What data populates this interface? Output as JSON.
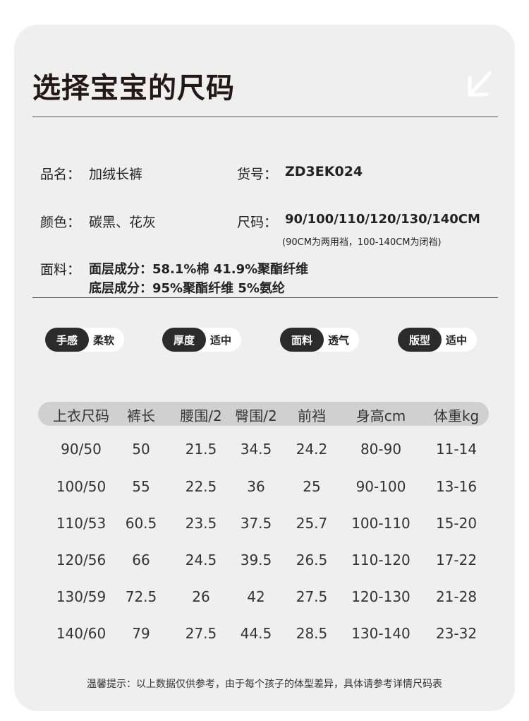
{
  "title": "选择宝宝的尺码",
  "info": {
    "name_label": "品名：",
    "name": "加绒长裤",
    "sku_label": "货号：",
    "sku": "ZD3EK024",
    "color_label": "颜色：",
    "color": "碳黑、花灰",
    "size_label": "尺码：",
    "sizes": "90/100/110/120/130/140CM",
    "size_note": "(90CM为两用裆，100-140CM为闭裆)",
    "fabric_label": "面料：",
    "fabric_outer": "面层成分：58.1%棉 41.9%聚酯纤维",
    "fabric_inner": "底层成分：95%聚酯纤维 5%氨纶"
  },
  "features": [
    {
      "key": "手感",
      "value": "柔软"
    },
    {
      "key": "厚度",
      "value": "适中"
    },
    {
      "key": "面料",
      "value": "透气"
    },
    {
      "key": "版型",
      "value": "适中"
    }
  ],
  "table": {
    "headers": [
      "上衣尺码",
      "裤长",
      "腰围/2",
      "臀围/2",
      "前裆",
      "身高cm",
      "体重kg"
    ],
    "rows": [
      [
        "90/50",
        "50",
        "21.5",
        "34.5",
        "24.2",
        "80-90",
        "11-14"
      ],
      [
        "100/50",
        "55",
        "22.5",
        "36",
        "25",
        "90-100",
        "13-16"
      ],
      [
        "110/53",
        "60.5",
        "23.5",
        "37.5",
        "25.7",
        "100-110",
        "15-20"
      ],
      [
        "120/56",
        "66",
        "24.5",
        "39.5",
        "26.5",
        "110-120",
        "17-22"
      ],
      [
        "130/59",
        "72.5",
        "26",
        "42",
        "27.5",
        "120-130",
        "21-28"
      ],
      [
        "140/60",
        "79",
        "27.5",
        "44.5",
        "28.5",
        "130-140",
        "23-32"
      ]
    ]
  },
  "footer": "温馨提示：以上数据仅供参考，由于每个孩子的体型差异，具体请参考详情尺码表",
  "icons": {
    "corner": "arrow-down-left-icon"
  }
}
